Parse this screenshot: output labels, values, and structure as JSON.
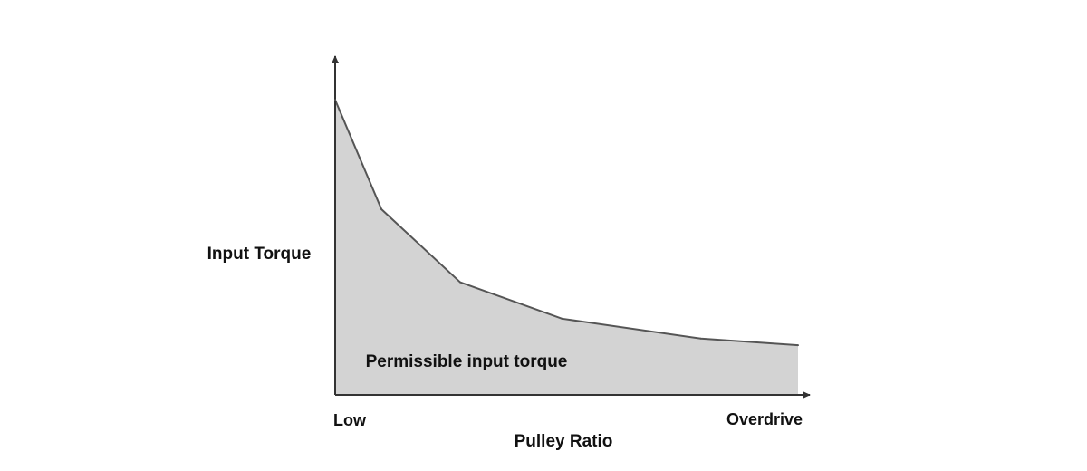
{
  "chart_data": {
    "type": "area",
    "title": "",
    "xlabel": "Pulley Ratio",
    "ylabel": "Input Torque",
    "x_tick_labels": [
      "Low",
      "Overdrive"
    ],
    "area_label": "Permissible input torque",
    "xlim": [
      0,
      1
    ],
    "ylim": [
      0,
      1
    ],
    "x": [
      0,
      0.1,
      0.27,
      0.49,
      0.79,
      1.0
    ],
    "y": [
      0.89,
      0.56,
      0.34,
      0.23,
      0.17,
      0.15
    ],
    "fill_color": "#d3d3d3",
    "line_color": "#555555",
    "axis_color": "#333333",
    "grid": false
  }
}
